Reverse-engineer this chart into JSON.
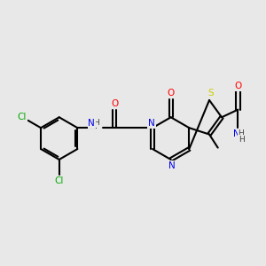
{
  "background_color": "#e8e8e8",
  "colors": {
    "N": "#0000ee",
    "O": "#ff0000",
    "S": "#cccc00",
    "Cl": "#00aa00",
    "C": "#000000",
    "H": "#444444"
  },
  "bond_lw": 1.5,
  "font_size": 7.5,
  "figsize": [
    3.0,
    3.0
  ],
  "dpi": 100
}
